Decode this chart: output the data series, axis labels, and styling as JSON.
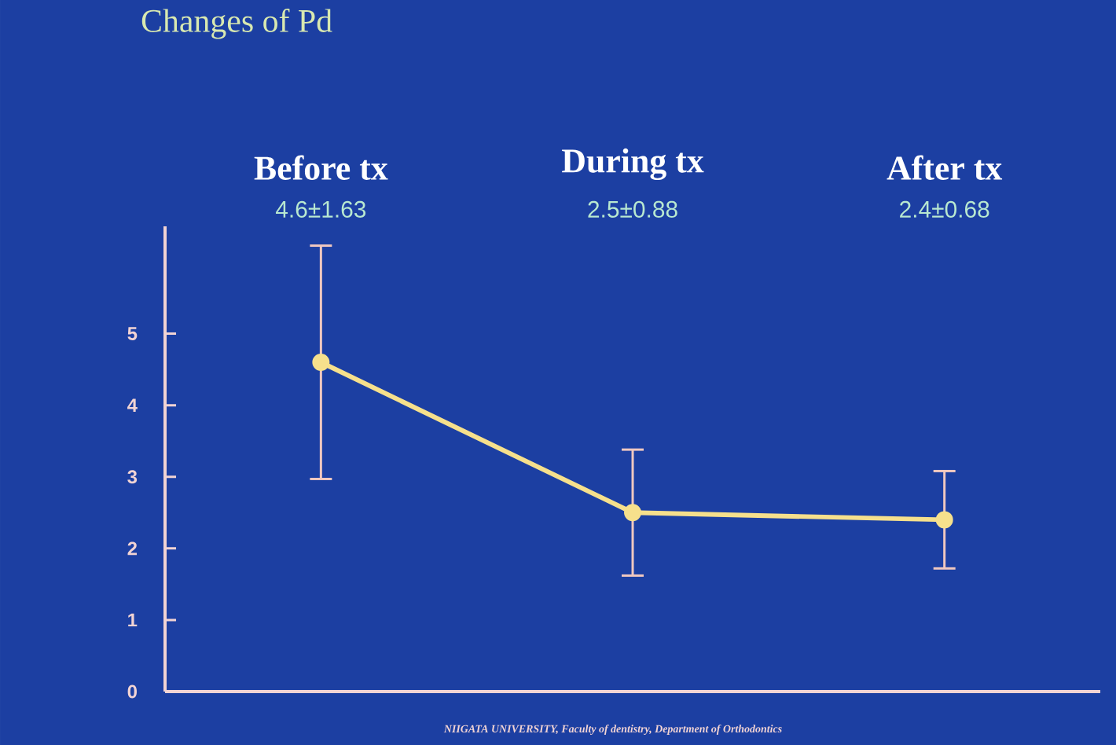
{
  "chart_data": {
    "type": "line",
    "title": "Changes of Pd",
    "categories": [
      "Before tx",
      "During tx",
      "After tx"
    ],
    "values": [
      4.6,
      2.5,
      2.4
    ],
    "errors": [
      1.63,
      0.88,
      0.68
    ],
    "color": "#f6e08c",
    "marker": "circle",
    "ylim": [
      0,
      6.5
    ],
    "yticks": [
      0,
      1,
      2,
      3,
      4,
      5
    ],
    "annotations": [
      "NIIGATA UNIVERSITY, Faculty of dentistry, Department of Orthodontics",
      "4.6±1.63",
      "2.5±0.88",
      "2.4±0.68"
    ]
  }
}
